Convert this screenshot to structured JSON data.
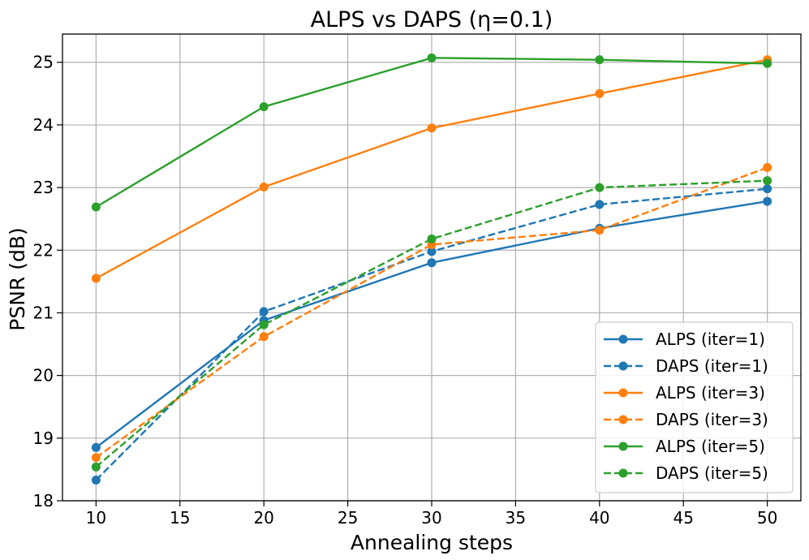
{
  "chart_data": {
    "type": "line",
    "title": "ALPS vs DAPS (η=0.1)",
    "xlabel": "Annealing steps",
    "ylabel": "PSNR (dB)",
    "x": [
      10,
      20,
      30,
      40,
      50
    ],
    "xlim": [
      8,
      52
    ],
    "ylim": [
      18,
      25.45
    ],
    "xticks": [
      10,
      15,
      20,
      25,
      30,
      35,
      40,
      45,
      50
    ],
    "yticks": [
      18,
      19,
      20,
      21,
      22,
      23,
      24,
      25
    ],
    "grid": true,
    "legend_position": "lower-right",
    "series": [
      {
        "name": "ALPS (iter=1)",
        "color": "#1f77b4",
        "dashed": false,
        "values": [
          18.85,
          20.88,
          21.8,
          22.35,
          22.78
        ]
      },
      {
        "name": "DAPS (iter=1)",
        "color": "#1f77b4",
        "dashed": true,
        "values": [
          18.33,
          21.02,
          21.98,
          22.73,
          22.98
        ]
      },
      {
        "name": "ALPS (iter=3)",
        "color": "#ff7f0e",
        "dashed": false,
        "values": [
          21.55,
          23.01,
          23.95,
          24.5,
          25.04
        ]
      },
      {
        "name": "DAPS (iter=3)",
        "color": "#ff7f0e",
        "dashed": true,
        "values": [
          18.69,
          20.62,
          22.09,
          22.32,
          23.32
        ]
      },
      {
        "name": "ALPS (iter=5)",
        "color": "#2ca02c",
        "dashed": false,
        "values": [
          22.69,
          24.29,
          25.07,
          25.04,
          24.98
        ]
      },
      {
        "name": "DAPS (iter=5)",
        "color": "#2ca02c",
        "dashed": true,
        "values": [
          18.54,
          20.81,
          22.18,
          23.0,
          23.11
        ]
      }
    ]
  }
}
